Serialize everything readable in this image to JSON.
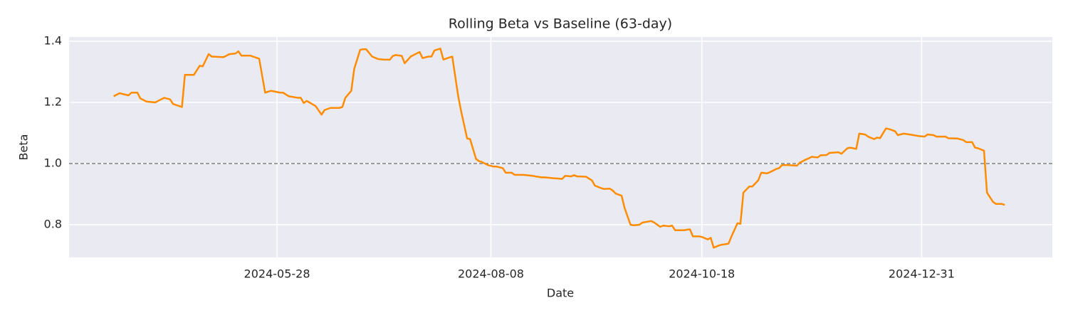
{
  "chart_data": {
    "type": "line",
    "title": "Rolling Beta vs Baseline (63-day)",
    "x_label": "Date",
    "y_label": "Beta",
    "x": [
      "2024-04-03",
      "2024-04-05",
      "2024-04-08",
      "2024-04-09",
      "2024-04-11",
      "2024-04-12",
      "2024-04-14",
      "2024-04-17",
      "2024-04-20",
      "2024-04-22",
      "2024-04-23",
      "2024-04-26",
      "2024-04-27",
      "2024-04-30",
      "2024-05-02",
      "2024-05-03",
      "2024-05-05",
      "2024-05-06",
      "2024-05-10",
      "2024-05-12",
      "2024-05-14",
      "2024-05-15",
      "2024-05-16",
      "2024-05-19",
      "2024-05-22",
      "2024-05-24",
      "2024-05-26",
      "2024-05-29",
      "2024-05-30",
      "2024-06-01",
      "2024-06-04",
      "2024-06-05",
      "2024-06-06",
      "2024-06-07",
      "2024-06-10",
      "2024-06-12",
      "2024-06-13",
      "2024-06-15",
      "2024-06-18",
      "2024-06-19",
      "2024-06-20",
      "2024-06-22",
      "2024-06-23",
      "2024-06-25",
      "2024-06-26",
      "2024-06-27",
      "2024-06-29",
      "2024-07-01",
      "2024-07-03",
      "2024-07-05",
      "2024-07-06",
      "2024-07-07",
      "2024-07-09",
      "2024-07-10",
      "2024-07-12",
      "2024-07-13",
      "2024-07-15",
      "2024-07-16",
      "2024-07-18",
      "2024-07-19",
      "2024-07-20",
      "2024-07-22",
      "2024-07-23",
      "2024-07-25",
      "2024-07-26",
      "2024-07-28",
      "2024-07-29",
      "2024-07-31",
      "2024-08-01",
      "2024-08-03",
      "2024-08-04",
      "2024-08-05",
      "2024-08-07",
      "2024-08-09",
      "2024-08-10",
      "2024-08-12",
      "2024-08-13",
      "2024-08-15",
      "2024-08-16",
      "2024-08-19",
      "2024-08-22",
      "2024-08-23",
      "2024-08-25",
      "2024-08-26",
      "2024-08-29",
      "2024-09-01",
      "2024-09-02",
      "2024-09-04",
      "2024-09-05",
      "2024-09-06",
      "2024-09-09",
      "2024-09-11",
      "2024-09-12",
      "2024-09-14",
      "2024-09-15",
      "2024-09-17",
      "2024-09-18",
      "2024-09-19",
      "2024-09-21",
      "2024-09-22",
      "2024-09-24",
      "2024-09-25",
      "2024-09-27",
      "2024-09-28",
      "2024-10-01",
      "2024-10-02",
      "2024-10-04",
      "2024-10-05",
      "2024-10-07",
      "2024-10-08",
      "2024-10-09",
      "2024-10-12",
      "2024-10-14",
      "2024-10-15",
      "2024-10-17",
      "2024-10-18",
      "2024-10-20",
      "2024-10-21",
      "2024-10-22",
      "2024-10-24",
      "2024-10-25",
      "2024-10-27",
      "2024-10-28",
      "2024-10-30",
      "2024-10-31",
      "2024-11-01",
      "2024-11-03",
      "2024-11-04",
      "2024-11-06",
      "2024-11-07",
      "2024-11-09",
      "2024-11-10",
      "2024-11-12",
      "2024-11-13",
      "2024-11-14",
      "2024-11-16",
      "2024-11-19",
      "2024-11-20",
      "2024-11-22",
      "2024-11-23",
      "2024-11-24",
      "2024-11-26",
      "2024-11-27",
      "2024-11-29",
      "2024-11-30",
      "2024-12-03",
      "2024-12-04",
      "2024-12-06",
      "2024-12-07",
      "2024-12-09",
      "2024-12-10",
      "2024-12-12",
      "2024-12-13",
      "2024-12-15",
      "2024-12-16",
      "2024-12-17",
      "2024-12-19",
      "2024-12-20",
      "2024-12-22",
      "2024-12-23",
      "2024-12-25",
      "2024-12-27",
      "2024-12-30",
      "2025-01-01",
      "2025-01-02",
      "2025-01-04",
      "2025-01-05",
      "2025-01-08",
      "2025-01-09",
      "2025-01-12",
      "2025-01-14",
      "2025-01-15",
      "2025-01-17",
      "2025-01-18",
      "2025-01-19",
      "2025-01-21",
      "2025-01-22",
      "2025-01-24",
      "2025-01-25",
      "2025-01-27",
      "2025-01-28"
    ],
    "series": [
      {
        "name": "Rolling Beta",
        "color": "#ff8c00",
        "values": [
          1.22,
          1.23,
          1.223,
          1.232,
          1.232,
          1.213,
          1.203,
          1.2,
          1.215,
          1.21,
          1.195,
          1.185,
          1.29,
          1.29,
          1.32,
          1.318,
          1.358,
          1.35,
          1.348,
          1.358,
          1.36,
          1.367,
          1.353,
          1.353,
          1.343,
          1.232,
          1.238,
          1.232,
          1.232,
          1.22,
          1.215,
          1.215,
          1.198,
          1.205,
          1.188,
          1.16,
          1.175,
          1.182,
          1.182,
          1.185,
          1.215,
          1.238,
          1.31,
          1.372,
          1.374,
          1.374,
          1.35,
          1.342,
          1.34,
          1.34,
          1.352,
          1.355,
          1.352,
          1.328,
          1.35,
          1.355,
          1.365,
          1.345,
          1.35,
          1.35,
          1.37,
          1.376,
          1.34,
          1.347,
          1.35,
          1.22,
          1.17,
          1.082,
          1.08,
          1.015,
          1.008,
          1.005,
          0.995,
          0.99,
          0.99,
          0.985,
          0.97,
          0.97,
          0.963,
          0.963,
          0.96,
          0.958,
          0.955,
          0.955,
          0.952,
          0.95,
          0.96,
          0.958,
          0.962,
          0.958,
          0.957,
          0.945,
          0.928,
          0.92,
          0.917,
          0.918,
          0.912,
          0.902,
          0.895,
          0.855,
          0.8,
          0.798,
          0.8,
          0.807,
          0.812,
          0.807,
          0.793,
          0.797,
          0.795,
          0.797,
          0.782,
          0.782,
          0.785,
          0.762,
          0.762,
          0.76,
          0.752,
          0.757,
          0.725,
          0.733,
          0.735,
          0.738,
          0.762,
          0.805,
          0.803,
          0.905,
          0.925,
          0.925,
          0.945,
          0.97,
          0.968,
          0.972,
          0.982,
          0.985,
          0.995,
          0.995,
          0.993,
          1.003,
          1.013,
          1.017,
          1.022,
          1.02,
          1.027,
          1.028,
          1.035,
          1.037,
          1.032,
          1.05,
          1.052,
          1.048,
          1.098,
          1.095,
          1.088,
          1.08,
          1.085,
          1.083,
          1.115,
          1.113,
          1.106,
          1.093,
          1.098,
          1.095,
          1.09,
          1.088,
          1.095,
          1.093,
          1.088,
          1.088,
          1.083,
          1.082,
          1.077,
          1.07,
          1.07,
          1.052,
          1.05,
          1.042,
          0.905,
          0.875,
          0.868,
          0.868,
          0.865
        ]
      }
    ],
    "hlines": [
      {
        "y": 1.0,
        "color": "#808080",
        "style": "dashed"
      }
    ],
    "xlim": [
      "2024-03-19",
      "2025-02-13"
    ],
    "xticks": [
      "2024-05-28",
      "2024-08-08",
      "2024-10-18",
      "2024-12-31"
    ],
    "ylim": [
      0.693,
      1.414
    ],
    "yticks": [
      0.8,
      {
        "value": 1.0,
        "label": "1.0"
      },
      1.2,
      1.4
    ],
    "grid": true,
    "background": "#eaeaf2"
  }
}
